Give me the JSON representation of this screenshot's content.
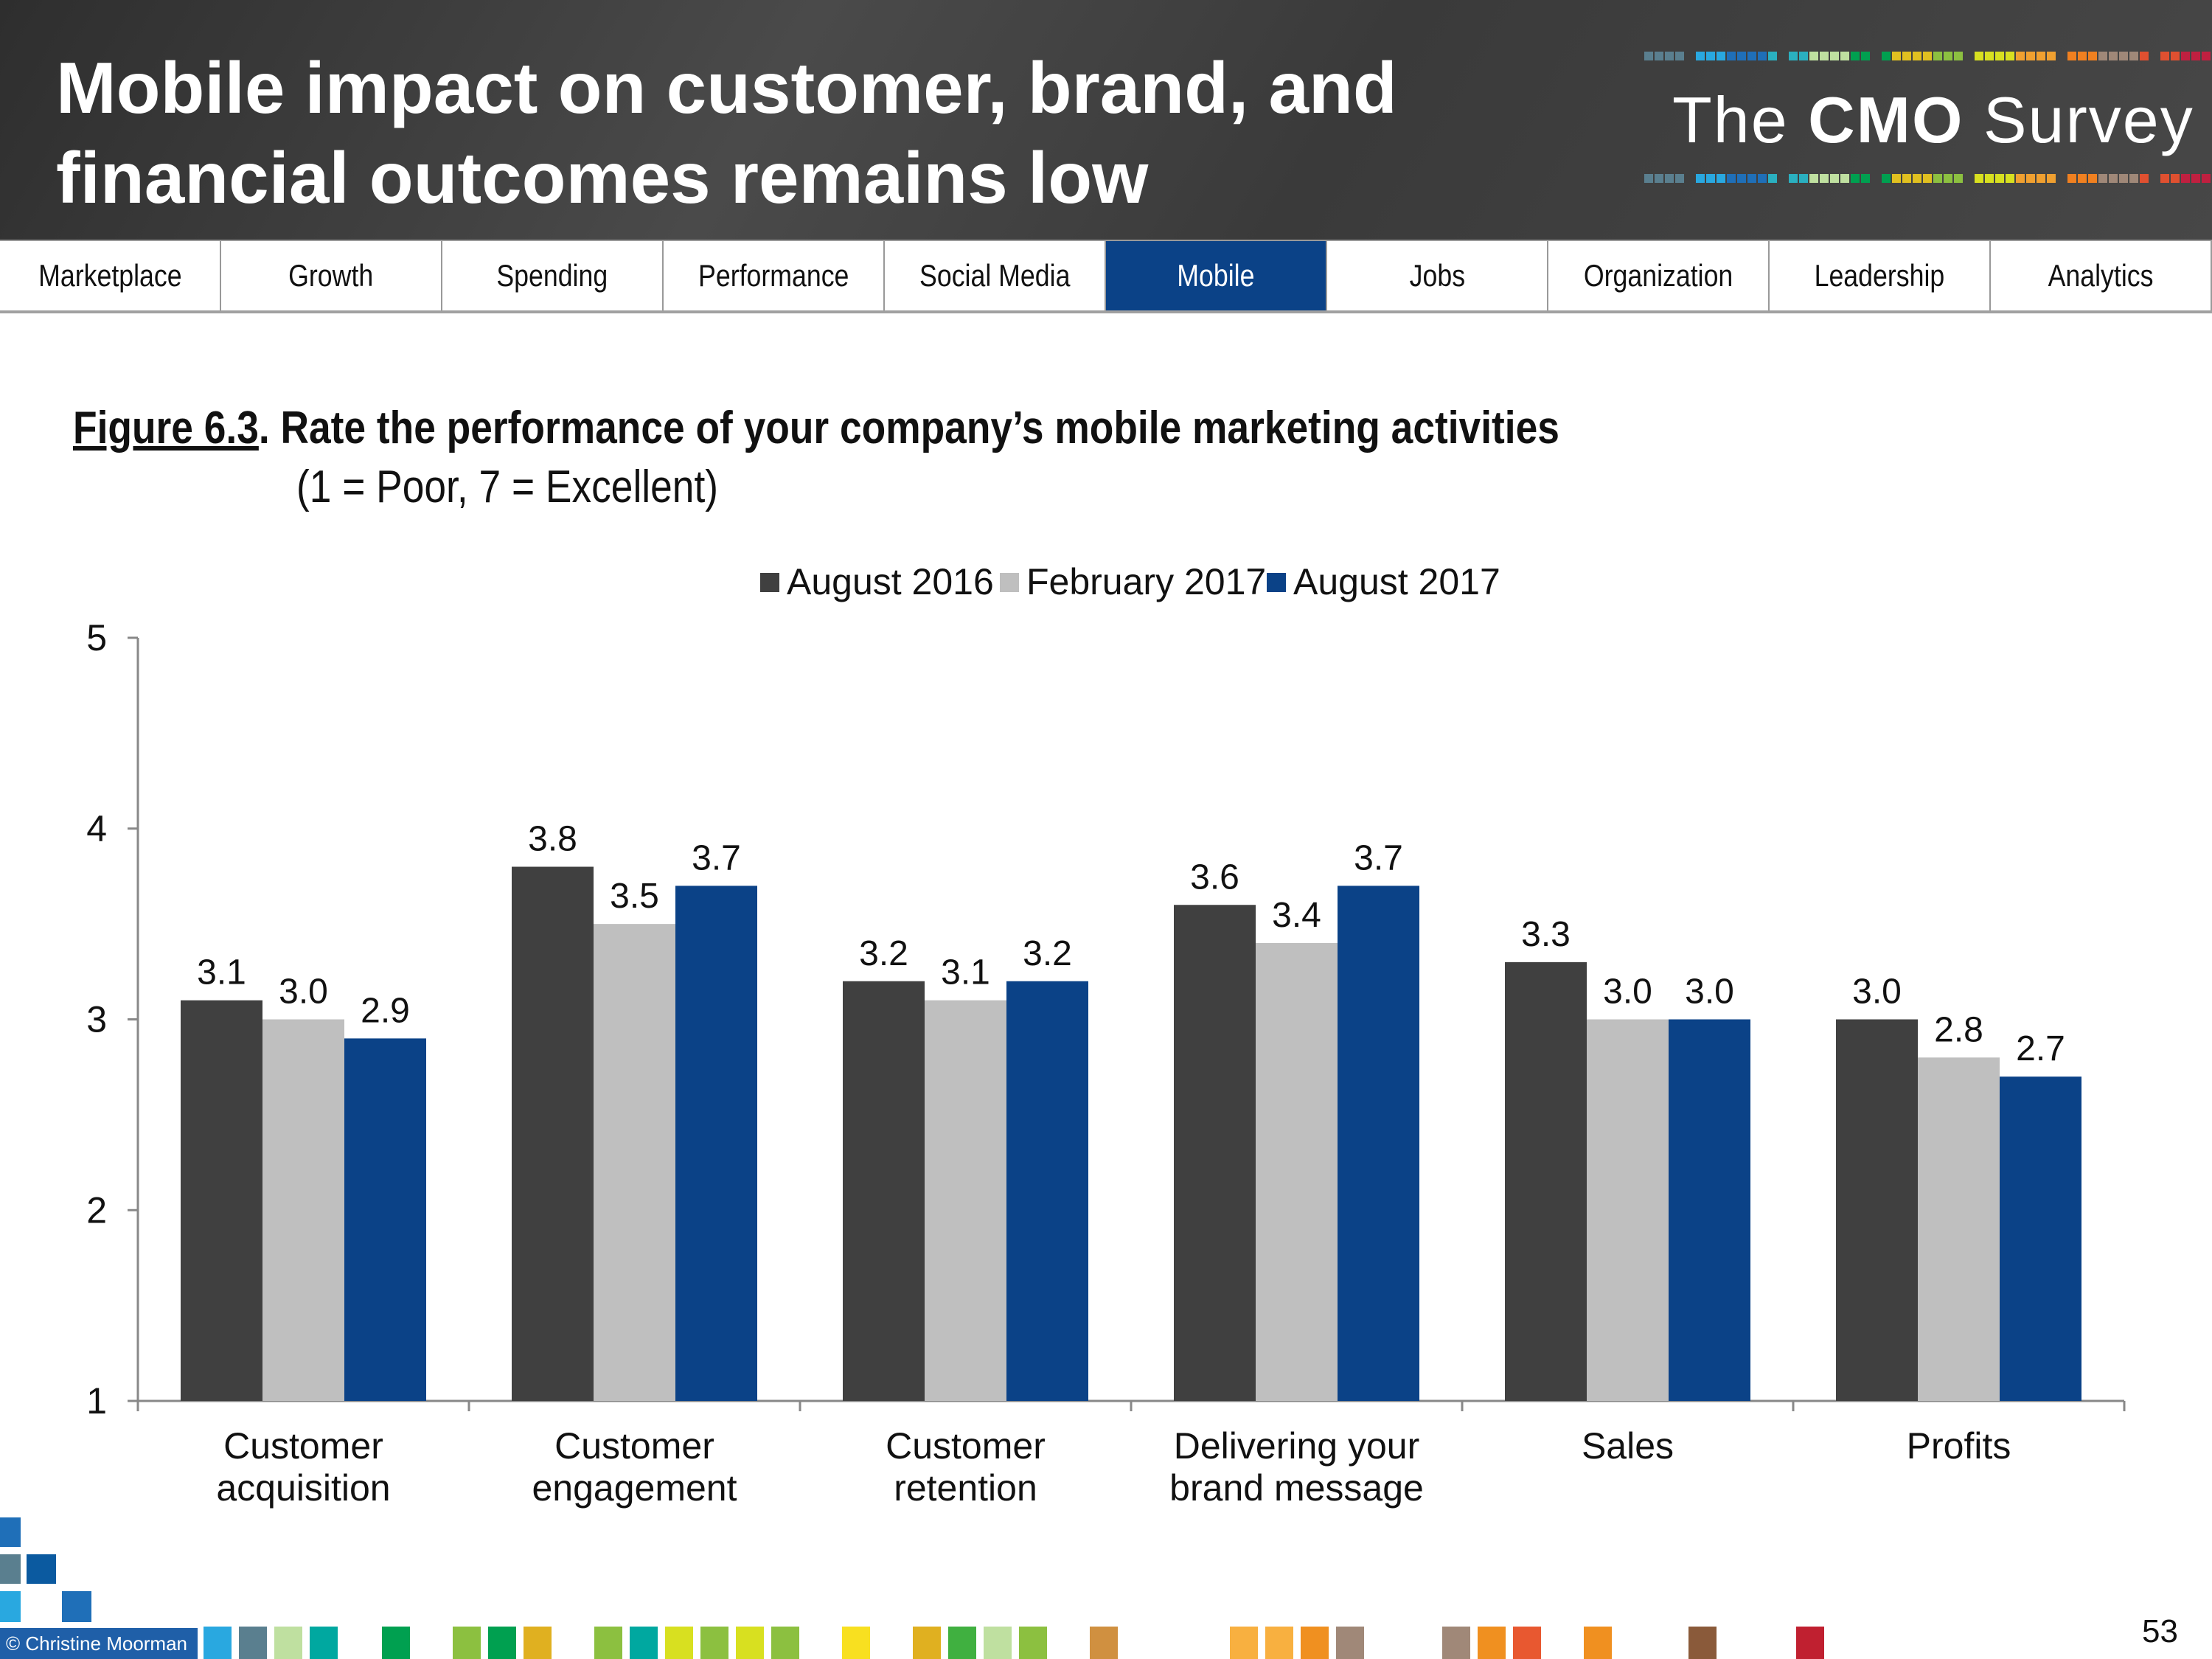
{
  "header": {
    "title": "Mobile impact on customer, brand, and\nfinancial outcomes remains low",
    "logo_text_light_1": "The",
    "logo_text_bold": "CMO",
    "logo_text_light_2": "Survey"
  },
  "nav": {
    "items": [
      {
        "label": "Marketplace"
      },
      {
        "label": "Growth"
      },
      {
        "label": "Spending"
      },
      {
        "label": "Performance"
      },
      {
        "label": "Social Media"
      },
      {
        "label": "Mobile",
        "active": true
      },
      {
        "label": "Jobs"
      },
      {
        "label": "Organization"
      },
      {
        "label": "Leadership"
      },
      {
        "label": "Analytics"
      }
    ]
  },
  "figure": {
    "number": "Figure 6.3",
    "title_rest": ".  Rate the performance of your company’s mobile marketing activities",
    "subtitle": "(1 = Poor, 7 = Excellent)"
  },
  "chart_data": {
    "type": "bar",
    "categories": [
      [
        "Customer",
        "acquisition"
      ],
      [
        "Customer",
        "engagement"
      ],
      [
        "Customer",
        "retention"
      ],
      [
        "Delivering your",
        "brand message"
      ],
      [
        "Sales"
      ],
      [
        "Profits"
      ]
    ],
    "series": [
      {
        "name": "August 2016",
        "color": "#404040",
        "values": [
          3.1,
          3.8,
          3.2,
          3.6,
          3.3,
          3.0
        ]
      },
      {
        "name": "February 2017",
        "color": "#bfbfbf",
        "values": [
          3.0,
          3.5,
          3.1,
          3.4,
          3.0,
          2.8
        ]
      },
      {
        "name": "August 2017",
        "color": "#0b4287",
        "values": [
          2.9,
          3.7,
          3.2,
          3.7,
          3.0,
          2.7
        ]
      }
    ],
    "ylim": [
      1,
      5
    ],
    "yticks": [
      1,
      2,
      3,
      4,
      5
    ],
    "legend": "top-center",
    "grid": false
  },
  "footer": {
    "copyright": "© Christine Moorman",
    "page_number": "53"
  }
}
